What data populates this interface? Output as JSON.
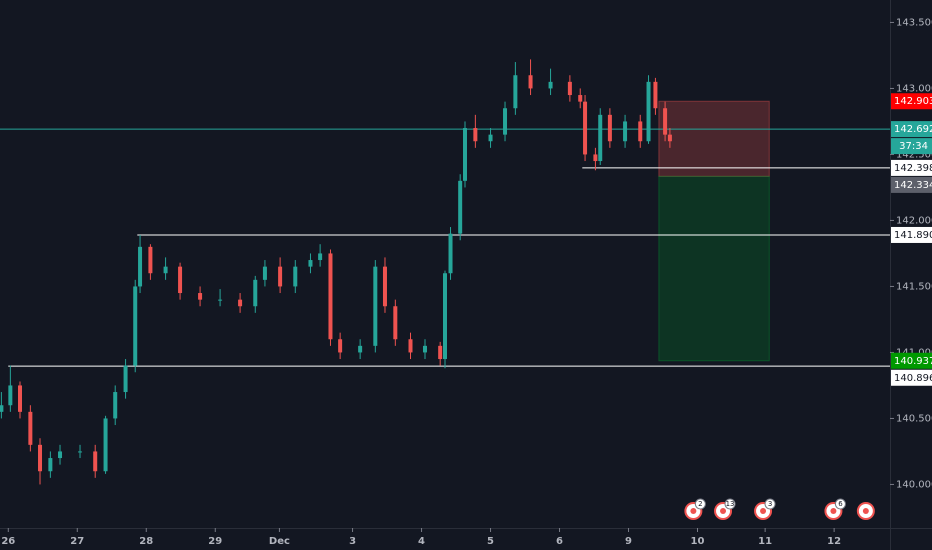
{
  "chart_data": {
    "type": "candlestick",
    "background": "#131722",
    "up_color": "#26a69a",
    "down_color": "#ef5350",
    "xlim": [
      -0.12,
      12.78
    ],
    "xticks": [
      {
        "value": 0,
        "label": "26"
      },
      {
        "value": 1,
        "label": "27"
      },
      {
        "value": 2,
        "label": "28"
      },
      {
        "value": 3,
        "label": "29"
      },
      {
        "value": 3.93,
        "label": "Dec"
      },
      {
        "value": 4.99,
        "label": "3"
      },
      {
        "value": 5.99,
        "label": "4"
      },
      {
        "value": 6.99,
        "label": "5"
      },
      {
        "value": 7.99,
        "label": "6"
      },
      {
        "value": 8.99,
        "label": "9"
      },
      {
        "value": 9.99,
        "label": "10"
      },
      {
        "value": 10.97,
        "label": "11"
      },
      {
        "value": 11.97,
        "label": "12"
      }
    ],
    "ylim": [
      139.67,
      143.67
    ],
    "yticks": [
      {
        "value": 140,
        "label": "140.000"
      },
      {
        "value": 140.5,
        "label": "140.500"
      },
      {
        "value": 141,
        "label": "141.000"
      },
      {
        "value": 141.5,
        "label": "141.500"
      },
      {
        "value": 142,
        "label": "142.000"
      },
      {
        "value": 142.5,
        "label": "142.500"
      },
      {
        "value": 143,
        "label": "143.000"
      },
      {
        "value": 143.5,
        "label": "143.500"
      }
    ],
    "x": [
      -0.1,
      0.03,
      0.17,
      0.32,
      0.46,
      0.61,
      0.75,
      1.04,
      1.26,
      1.41,
      1.55,
      1.7,
      1.84,
      1.91,
      2.06,
      2.28,
      2.49,
      2.78,
      3.07,
      3.36,
      3.58,
      3.72,
      3.94,
      4.16,
      4.38,
      4.52,
      4.67,
      4.81,
      5.1,
      5.32,
      5.46,
      5.61,
      5.83,
      6.04,
      6.26,
      6.33,
      6.41,
      6.55,
      6.62,
      6.77,
      6.99,
      7.2,
      7.35,
      7.57,
      7.86,
      8.14,
      8.29,
      8.36,
      8.51,
      8.58,
      8.72,
      8.94,
      9.16,
      9.28,
      9.38,
      9.52,
      9.59
    ],
    "open": [
      140.55,
      140.6,
      140.75,
      140.55,
      140.3,
      140.1,
      140.2,
      140.25,
      140.25,
      140.1,
      140.5,
      140.7,
      140.9,
      141.5,
      141.8,
      141.6,
      141.65,
      141.45,
      141.4,
      141.4,
      141.35,
      141.55,
      141.65,
      141.5,
      141.65,
      141.7,
      141.75,
      141.1,
      141.0,
      141.05,
      141.65,
      141.35,
      141.1,
      141.0,
      141.05,
      140.95,
      141.6,
      141.9,
      142.3,
      142.7,
      142.6,
      142.65,
      142.85,
      143.1,
      143.0,
      143.05,
      142.95,
      142.9,
      142.5,
      142.45,
      142.8,
      142.6,
      142.75,
      142.6,
      143.05,
      142.85,
      142.65
    ],
    "high": [
      140.7,
      140.9,
      140.78,
      140.6,
      140.35,
      140.25,
      140.3,
      140.3,
      140.3,
      140.52,
      140.75,
      140.95,
      141.55,
      141.89,
      141.82,
      141.72,
      141.68,
      141.5,
      141.48,
      141.45,
      141.58,
      141.7,
      141.72,
      141.7,
      141.75,
      141.82,
      141.78,
      141.15,
      141.1,
      141.7,
      141.72,
      141.4,
      141.15,
      141.1,
      141.08,
      141.62,
      141.95,
      142.35,
      142.75,
      142.8,
      142.7,
      142.9,
      143.2,
      143.22,
      143.15,
      143.1,
      143.0,
      142.95,
      142.55,
      142.85,
      142.85,
      142.8,
      142.8,
      143.1,
      143.08,
      142.9,
      142.7
    ],
    "low": [
      140.5,
      140.55,
      140.5,
      140.25,
      140.0,
      140.05,
      140.15,
      140.2,
      140.05,
      140.08,
      140.45,
      140.65,
      140.85,
      141.45,
      141.55,
      141.55,
      141.4,
      141.35,
      141.35,
      141.3,
      141.3,
      141.5,
      141.45,
      141.45,
      141.6,
      141.65,
      141.05,
      140.95,
      140.95,
      141.0,
      141.3,
      141.05,
      140.95,
      140.95,
      140.9,
      140.88,
      141.55,
      141.85,
      142.25,
      142.55,
      142.55,
      142.6,
      142.8,
      142.95,
      142.95,
      142.9,
      142.85,
      142.45,
      142.38,
      142.42,
      142.55,
      142.55,
      142.55,
      142.58,
      142.8,
      142.6,
      142.55
    ],
    "close": [
      140.6,
      140.75,
      140.55,
      140.3,
      140.1,
      140.2,
      140.25,
      140.25,
      140.1,
      140.5,
      140.7,
      140.9,
      141.5,
      141.8,
      141.6,
      141.65,
      141.45,
      141.4,
      141.4,
      141.35,
      141.55,
      141.65,
      141.5,
      141.65,
      141.7,
      141.75,
      141.1,
      141.0,
      141.05,
      141.65,
      141.35,
      141.1,
      141.0,
      141.05,
      140.95,
      141.6,
      141.9,
      142.3,
      142.7,
      142.6,
      142.65,
      142.85,
      143.1,
      143.0,
      143.05,
      142.95,
      142.9,
      142.5,
      142.45,
      142.8,
      142.6,
      142.75,
      142.6,
      143.05,
      142.85,
      142.65,
      142.6
    ],
    "price_lines": [
      {
        "value": 142.692,
        "label": "142.692",
        "from": -0.12,
        "color": "#26a69a",
        "tag_color": "#26a69a"
      },
      {
        "value": 142.398,
        "label": "142.398",
        "from": 8.32,
        "color": "#ffffff",
        "tag_color": "#ffffff"
      },
      {
        "value": 141.89,
        "label": "141.890",
        "from": 1.87,
        "color": "#ffffff",
        "tag_color": "#ffffff"
      },
      {
        "value": 140.896,
        "label": "140.896",
        "from": 0,
        "color": "#ffffff",
        "tag_color": "#ffffff"
      }
    ],
    "countdown": "37:34",
    "position": {
      "x": [
        9.43,
        11.03
      ],
      "stop": 142.903,
      "entry": 142.334,
      "target": 140.937,
      "stop_color": "#ff0000",
      "entry_color": "#5d606b",
      "target_color": "#009900"
    },
    "events": [
      {
        "x": 9.93,
        "label": "2"
      },
      {
        "x": 10.36,
        "label": "13"
      },
      {
        "x": 10.94,
        "label": "3"
      },
      {
        "x": 11.96,
        "label": "6"
      },
      {
        "x": 12.43
      }
    ]
  }
}
